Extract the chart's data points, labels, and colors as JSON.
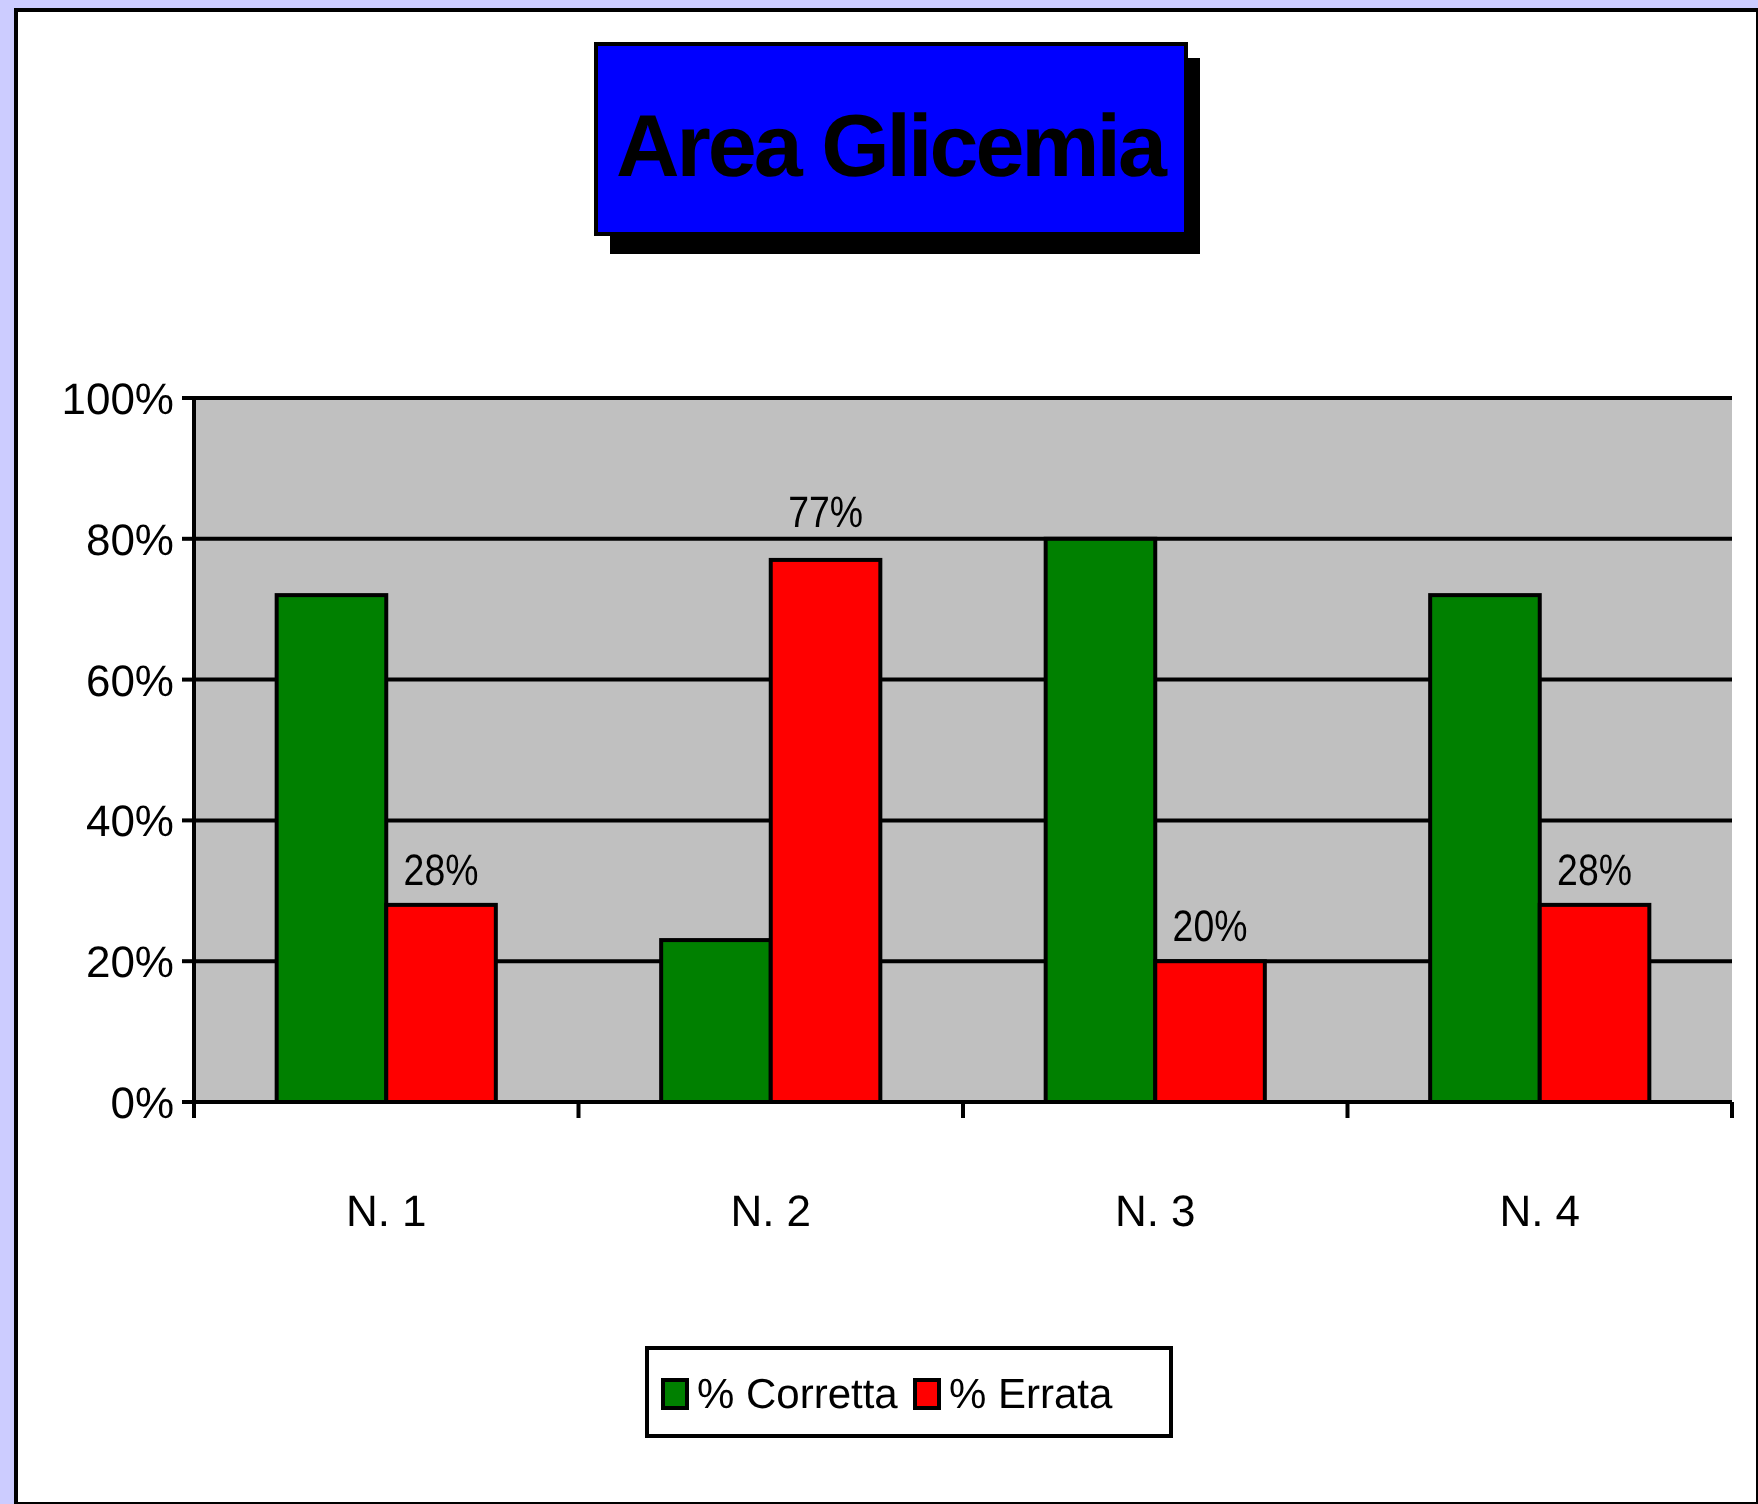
{
  "chart_data": {
    "type": "bar",
    "title": "Area Glicemia",
    "categories": [
      "N. 1",
      "N. 2",
      "N. 3",
      "N. 4"
    ],
    "series": [
      {
        "name": "% Corretta",
        "color": "#008000",
        "values": [
          72,
          23,
          80,
          72
        ]
      },
      {
        "name": "% Errata",
        "color": "#ff0000",
        "values": [
          28,
          77,
          20,
          28
        ],
        "value_labels": [
          "28%",
          "77%",
          "20%",
          "28%"
        ]
      }
    ],
    "ylim": [
      0,
      100
    ],
    "yticks": [
      {
        "value": 0,
        "label": "0%"
      },
      {
        "value": 20,
        "label": "20%"
      },
      {
        "value": 40,
        "label": "40%"
      },
      {
        "value": 60,
        "label": "60%"
      },
      {
        "value": 80,
        "label": "80%"
      },
      {
        "value": 100,
        "label": "100%"
      }
    ],
    "grid": "y",
    "legend": "bottom"
  }
}
